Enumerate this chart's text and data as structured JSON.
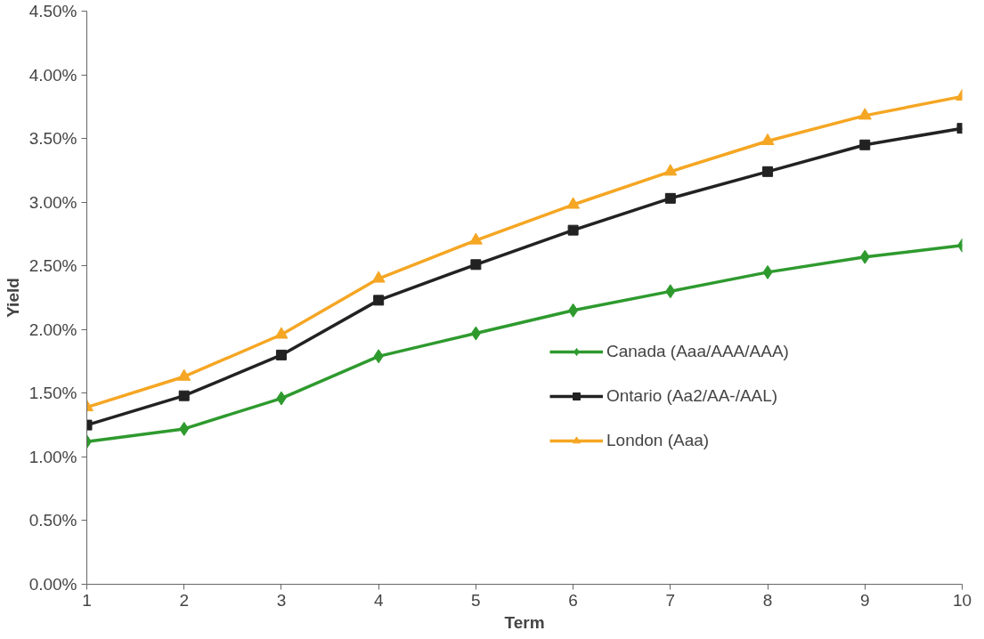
{
  "chart_data": {
    "type": "line",
    "xlabel": "Term",
    "ylabel": "Yield",
    "x": [
      1,
      2,
      3,
      4,
      5,
      6,
      7,
      8,
      9,
      10
    ],
    "series": [
      {
        "name": "Canada (Aaa/AAA/AAA)",
        "color": "#2e9a2e",
        "marker": "diamond",
        "values": [
          1.12,
          1.22,
          1.46,
          1.79,
          1.97,
          2.15,
          2.3,
          2.45,
          2.57,
          2.66
        ]
      },
      {
        "name": "Ontario (Aa2/AA-/AAL)",
        "color": "#222222",
        "marker": "square",
        "values": [
          1.25,
          1.48,
          1.8,
          2.23,
          2.51,
          2.78,
          3.03,
          3.24,
          3.45,
          3.58
        ]
      },
      {
        "name": "London (Aaa)",
        "color": "#f5a623",
        "marker": "triangle",
        "values": [
          1.39,
          1.63,
          1.96,
          2.4,
          2.7,
          2.98,
          3.24,
          3.48,
          3.68,
          3.83
        ]
      }
    ],
    "xlim": [
      1,
      10
    ],
    "xticks": [
      1,
      2,
      3,
      4,
      5,
      6,
      7,
      8,
      9,
      10
    ],
    "ylim": [
      0,
      4.5
    ],
    "yticks": [
      {
        "value": 0,
        "label": "0.00%"
      },
      {
        "value": 0.5,
        "label": "0.50%"
      },
      {
        "value": 1,
        "label": "1.00%"
      },
      {
        "value": 1.5,
        "label": "1.50%"
      },
      {
        "value": 2,
        "label": "2.00%"
      },
      {
        "value": 2.5,
        "label": "2.50%"
      },
      {
        "value": 3,
        "label": "3.00%"
      },
      {
        "value": 3.5,
        "label": "3.50%"
      },
      {
        "value": 4,
        "label": "4.00%"
      },
      {
        "value": 4.5,
        "label": "4.50%"
      }
    ],
    "grid": false,
    "legend": "bottom right",
    "line_style": "solid"
  }
}
